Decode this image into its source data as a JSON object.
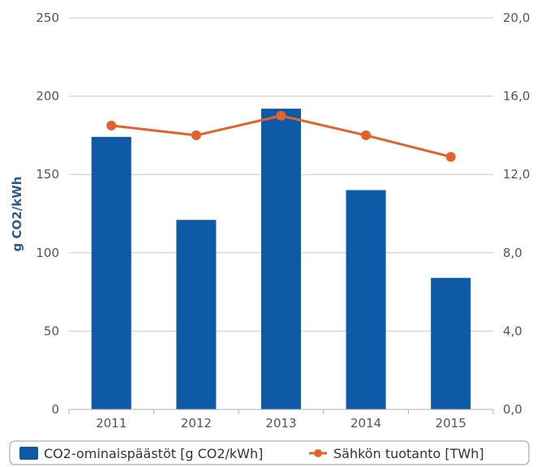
{
  "chart_data": {
    "type": "bar",
    "categories": [
      "2011",
      "2012",
      "2013",
      "2014",
      "2015"
    ],
    "ylabel": "g CO2/kWh",
    "ylim": [
      0,
      250
    ],
    "y_ticks": [
      "0",
      "50",
      "100",
      "150",
      "200",
      "250"
    ],
    "y2lim": [
      0,
      20
    ],
    "y2_ticks": [
      "0,0",
      "4,0",
      "8,0",
      "12,0",
      "16,0",
      "20,0"
    ],
    "grid": true,
    "legend_position": "bottom",
    "series": [
      {
        "name": "CO2-ominaispäästöt [g CO2/kWh]",
        "type": "bar",
        "axis": "left",
        "color": "#0e5aa7",
        "values": [
          174,
          121,
          192,
          140,
          84
        ]
      },
      {
        "name": "Sähkön tuotanto [TWh]",
        "type": "line",
        "axis": "right",
        "color": "#e1632b",
        "values": [
          14.5,
          14.0,
          15.0,
          14.0,
          12.9
        ]
      }
    ]
  }
}
